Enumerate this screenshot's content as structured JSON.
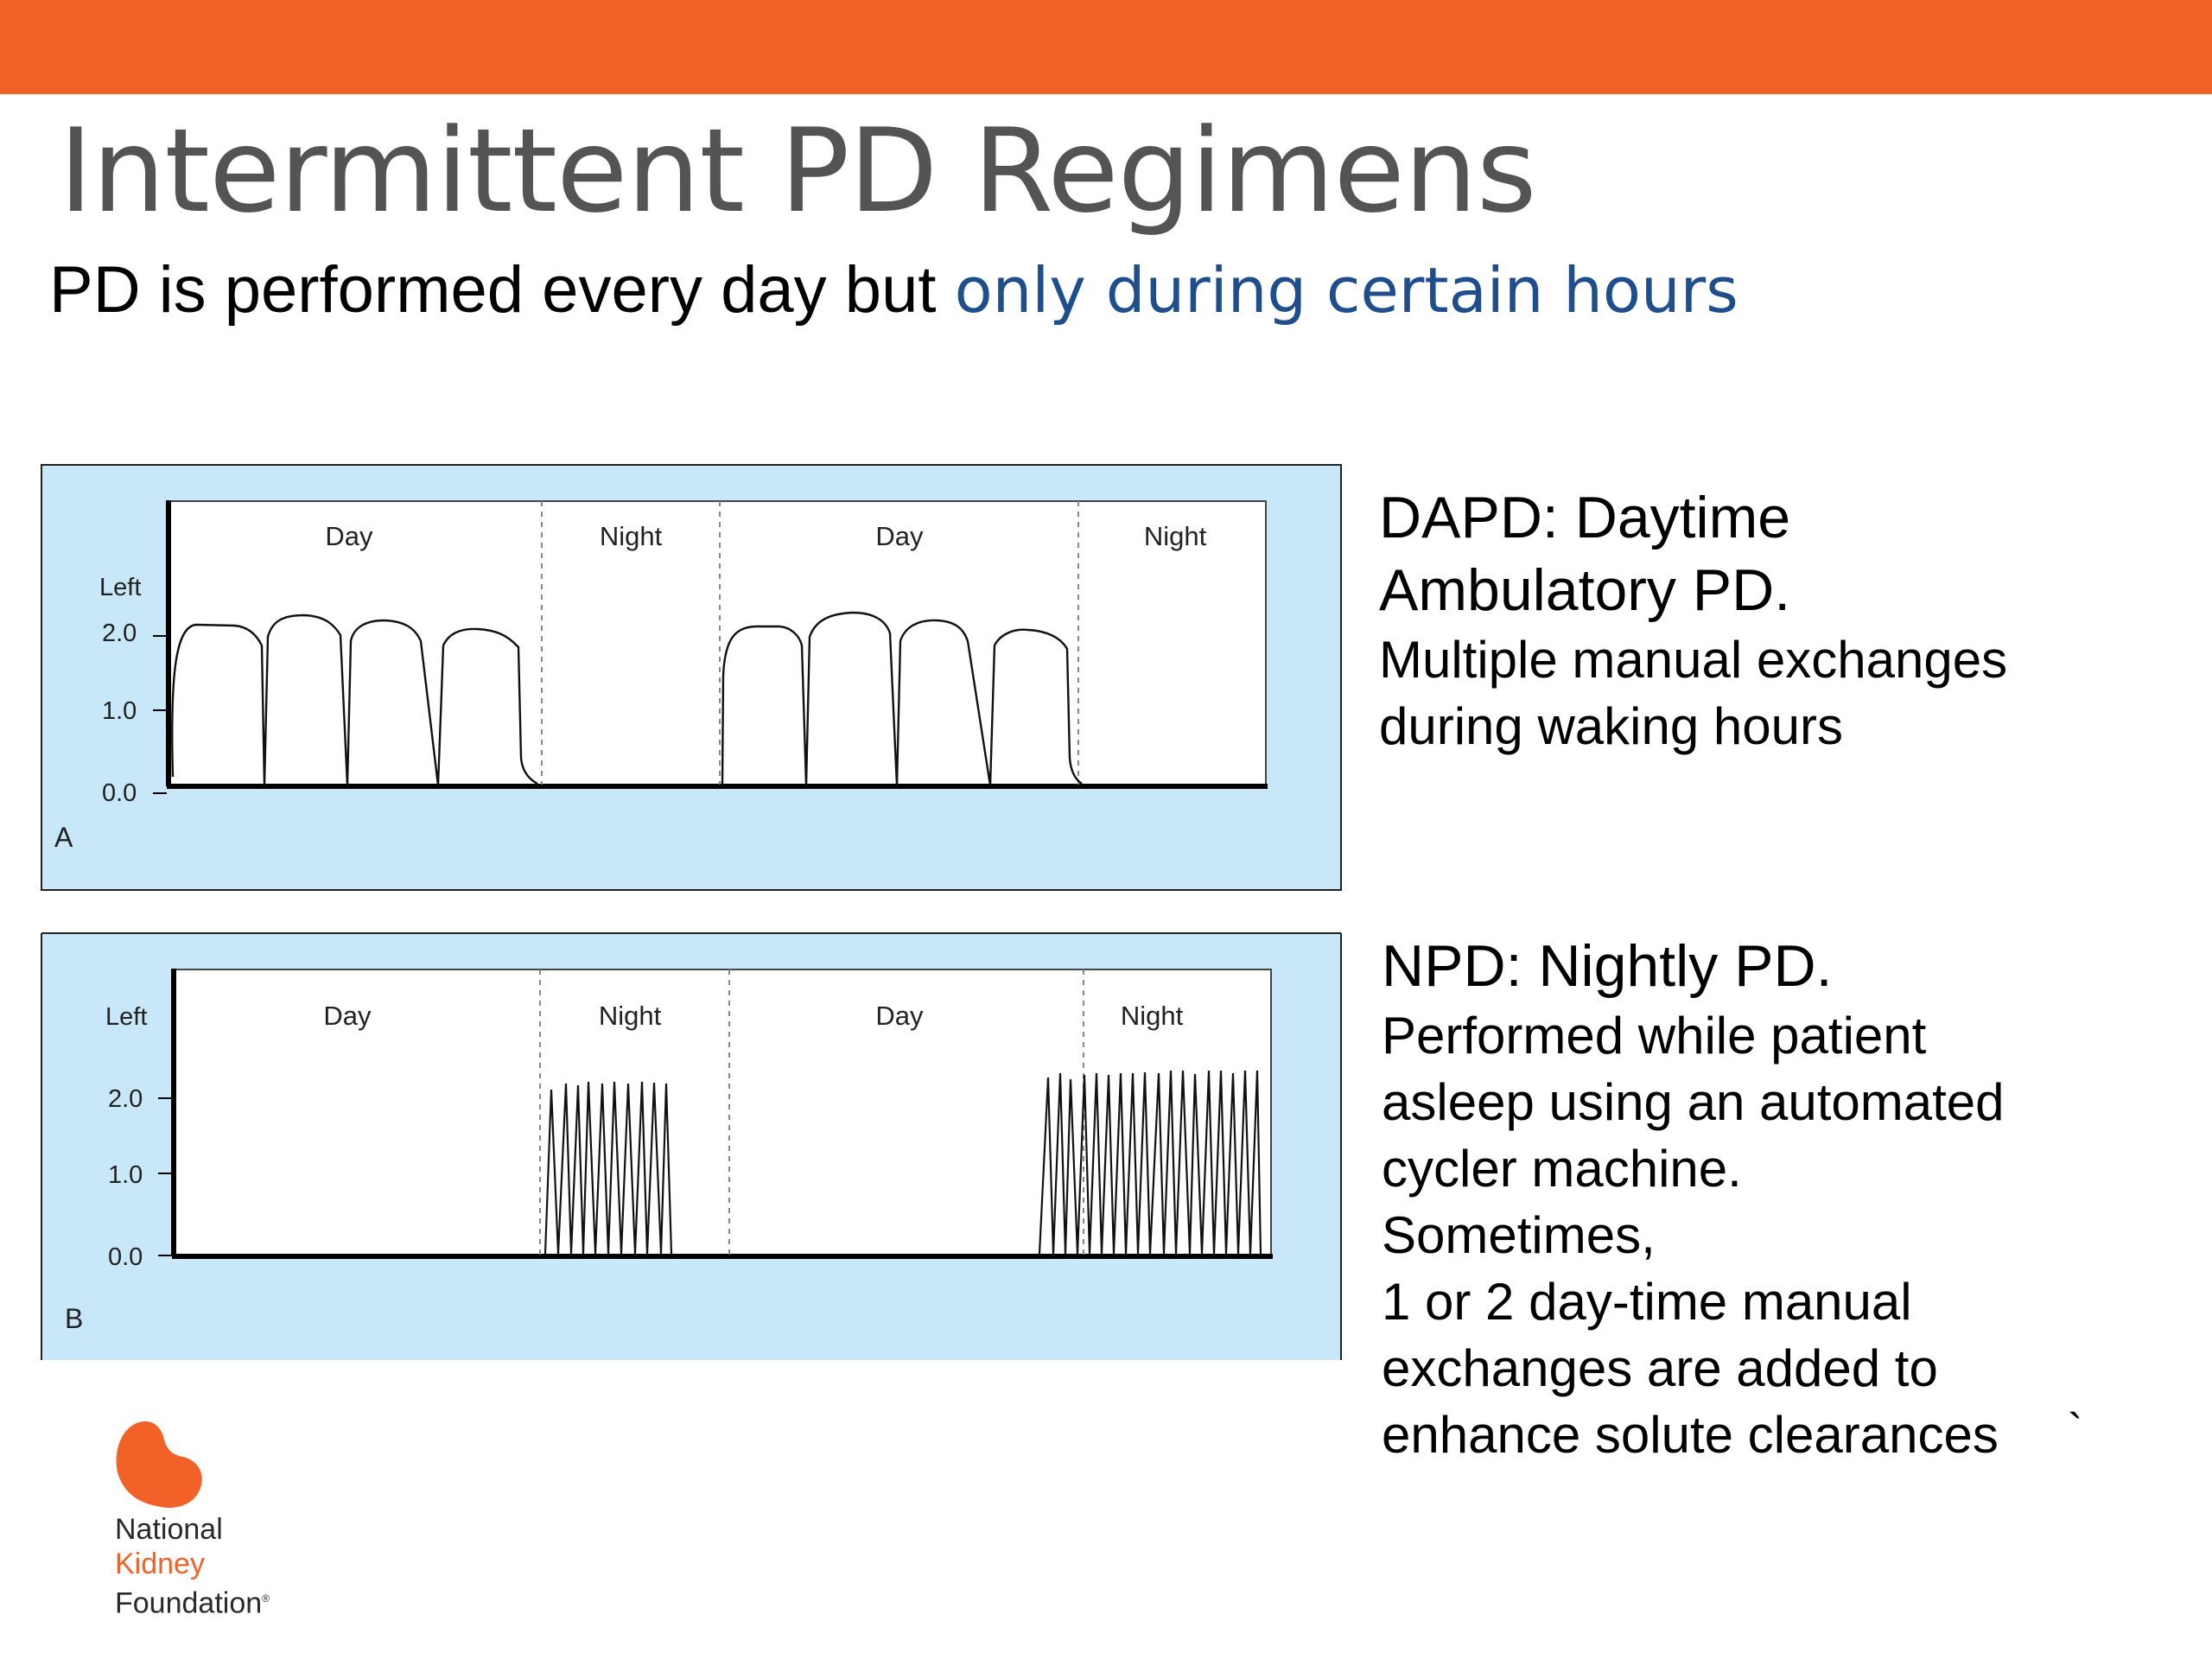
{
  "header": {
    "title": "Intermittent PD Regimens",
    "subtitle_plain": "PD is performed every day but ",
    "subtitle_highlight": "only during certain hours",
    "highlight_color": "#1f4e8c",
    "bar_color": "#f26228"
  },
  "panels": [
    {
      "letter": "A",
      "y_label": "Left",
      "y_ticks": [
        "2.0",
        "1.0",
        "0.0"
      ],
      "sections": [
        "Day",
        "Night",
        "Day",
        "Night"
      ]
    },
    {
      "letter": "B",
      "y_label": "Left",
      "y_ticks": [
        "2.0",
        "1.0",
        "0.0"
      ],
      "sections": [
        "Day",
        "Night",
        "Day",
        "Night"
      ]
    }
  ],
  "descriptions": {
    "dapd": {
      "heading_lines": [
        "DAPD: Daytime",
        "Ambulatory PD."
      ],
      "body_lines": [
        "Multiple manual exchanges",
        "during waking hours"
      ]
    },
    "npd": {
      "heading_lines": [
        "NPD: Nightly PD."
      ],
      "body_lines": [
        "Performed while patient",
        "asleep using an automated",
        "cycler machine.",
        "Sometimes,",
        "1 or 2 day-time manual",
        "exchanges are added to",
        "enhance solute clearances"
      ],
      "trailing_mark": "`"
    }
  },
  "logo": {
    "line1": "National",
    "line2": "Kidney",
    "line3": "Foundation",
    "registered": "®",
    "color": "#f26228"
  }
}
